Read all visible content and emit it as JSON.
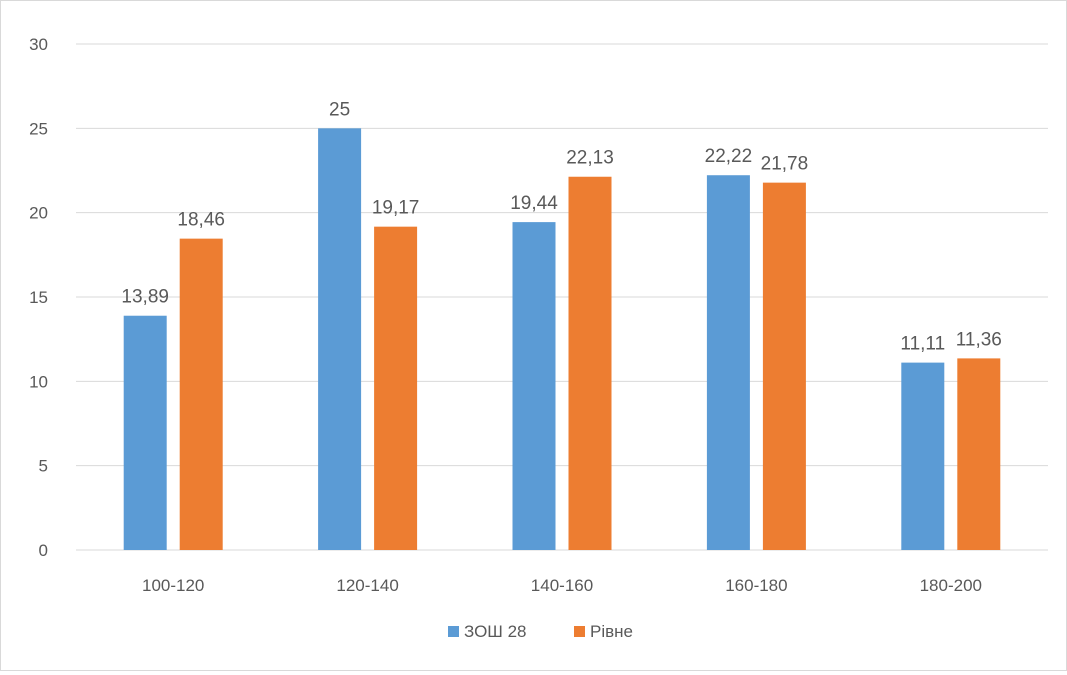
{
  "chart_data": {
    "type": "bar",
    "categories": [
      "100-120",
      "120-140",
      "140-160",
      "160-180",
      "180-200"
    ],
    "series": [
      {
        "name": "ЗОШ 28",
        "values": [
          13.89,
          25,
          19.44,
          22.22,
          11.11
        ],
        "labels": [
          "13,89",
          "25",
          "19,44",
          "22,22",
          "11,11"
        ],
        "color": "#5b9bd5"
      },
      {
        "name": "Рівне",
        "values": [
          18.46,
          19.17,
          22.13,
          21.78,
          11.36
        ],
        "labels": [
          "18,46",
          "19,17",
          "22,13",
          "21,78",
          "11,36"
        ],
        "color": "#ed7d31"
      }
    ],
    "y_ticks": [
      "0",
      "5",
      "10",
      "15",
      "20",
      "25",
      "30"
    ],
    "ylim": [
      0,
      30
    ],
    "grid": true,
    "legend_position": "bottom"
  }
}
